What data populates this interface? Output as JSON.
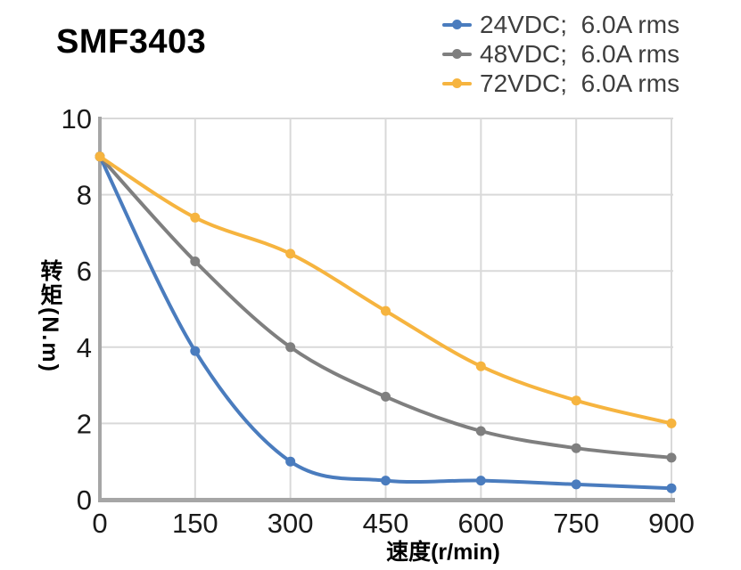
{
  "title": "SMF3403",
  "legend": {
    "items": [
      {
        "label": "24VDC;  6.0A rms"
      },
      {
        "label": "48VDC;  6.0A rms"
      },
      {
        "label": "72VDC;  6.0A rms"
      }
    ]
  },
  "chart_data": {
    "type": "line",
    "title": "SMF3403",
    "xlabel": "速度(r/min)",
    "ylabel": "转矩(N.m)",
    "x": [
      0,
      150,
      300,
      450,
      600,
      750,
      900
    ],
    "x_ticks": [
      0,
      150,
      300,
      450,
      600,
      750,
      900
    ],
    "y_ticks": [
      0,
      2,
      4,
      6,
      8,
      10
    ],
    "xlim": [
      0,
      900
    ],
    "ylim": [
      0,
      10
    ],
    "grid": true,
    "legend_position": "top-right",
    "series": [
      {
        "name": "24VDC;  6.0A rms",
        "color": "#4A7CBE",
        "values": [
          9.0,
          3.9,
          1.0,
          0.5,
          0.5,
          0.4,
          0.3
        ]
      },
      {
        "name": "48VDC;  6.0A rms",
        "color": "#7F7F7F",
        "values": [
          9.0,
          6.25,
          4.0,
          2.7,
          1.8,
          1.35,
          1.1
        ]
      },
      {
        "name": "72VDC;  6.0A rms",
        "color": "#F6B43F",
        "values": [
          9.0,
          7.4,
          6.45,
          4.95,
          3.5,
          2.6,
          2.0
        ]
      }
    ]
  },
  "style": {
    "grid_color": "#D9D9D9",
    "axis_color": "#A6A6A6",
    "tick_text_color": "#1A1A1A",
    "legend_text_color": "#3E3E3E",
    "title_color": "#000000"
  }
}
